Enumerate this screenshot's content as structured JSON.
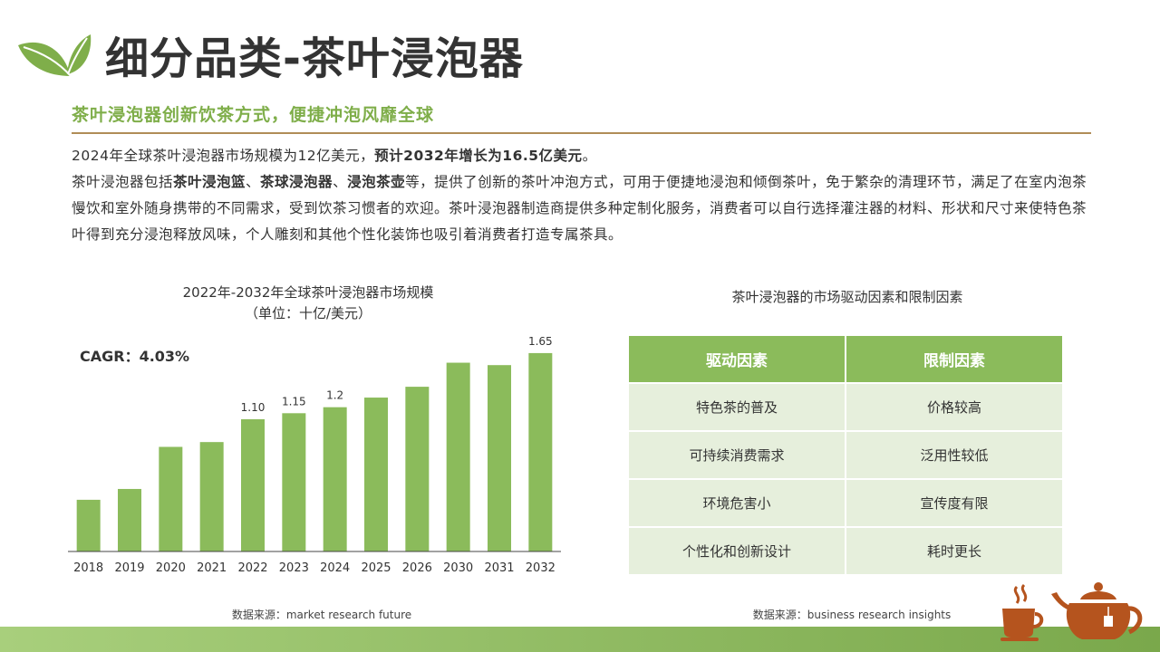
{
  "header": {
    "title": "细分品类-茶叶浸泡器",
    "subtitle": "茶叶浸泡器创新饮茶方式，便捷冲泡风靡全球"
  },
  "body": {
    "line1_normal": "2024年全球茶叶浸泡器市场规模为12亿美元，",
    "line1_bold": "预计2032年增长为16.5亿美元",
    "line1_end": "。",
    "line2_start": "茶叶浸泡器包括",
    "line2_bold1": "茶叶浸泡篮",
    "sep1": "、",
    "line2_bold2": "茶球浸泡器",
    "sep2": "、",
    "line2_bold3": "浸泡茶壶",
    "line2_rest": "等，提供了创新的茶叶冲泡方式，可用于便捷地浸泡和倾倒茶叶，免于繁杂的清理环节，满足了在室内泡茶慢饮和室外随身携带的不同需求，受到饮茶习惯者的欢迎。茶叶浸泡器制造商提供多种定制化服务，消费者可以自行选择灌注器的材料、形状和尺寸来使特色茶叶得到充分浸泡释放风味，个人雕刻和其他个性化装饰也吸引着消费者打造专属茶具。"
  },
  "chart_data": {
    "type": "bar",
    "title": "2022年-2032年全球茶叶浸泡器市场规模",
    "subtitle": "（单位：十亿/美元）",
    "annotation": "CAGR：4.03%",
    "categories": [
      "2018",
      "2019",
      "2020",
      "2021",
      "2022",
      "2023",
      "2024",
      "2025",
      "2026",
      "2030",
      "2031",
      "2032"
    ],
    "values": [
      0.43,
      0.52,
      0.87,
      0.91,
      1.1,
      1.15,
      1.2,
      1.28,
      1.37,
      1.57,
      1.55,
      1.65
    ],
    "data_labels": [
      "",
      "",
      "",
      "",
      "1.10",
      "1.15",
      "1.2",
      "",
      "",
      "",
      "",
      "1.65"
    ],
    "ylim": [
      0,
      1.8
    ],
    "bar_color": "#8bbb5b",
    "grid": false,
    "source": "数据来源：market research future"
  },
  "table": {
    "title": "茶叶浸泡器的市场驱动因素和限制因素",
    "headers": [
      "驱动因素",
      "限制因素"
    ],
    "rows": [
      [
        "特色茶的普及",
        "价格较高"
      ],
      [
        "可持续消费需求",
        "泛用性较低"
      ],
      [
        "环境危害小",
        "宣传度有限"
      ],
      [
        "个性化和创新设计",
        "耗时更长"
      ]
    ],
    "source": "数据来源：business research insights"
  },
  "colors": {
    "accent_green": "#8bbb5b",
    "subtitle_green": "#7fae4a",
    "rule_brown": "#b08d57",
    "teapot_brown": "#b5541e"
  }
}
